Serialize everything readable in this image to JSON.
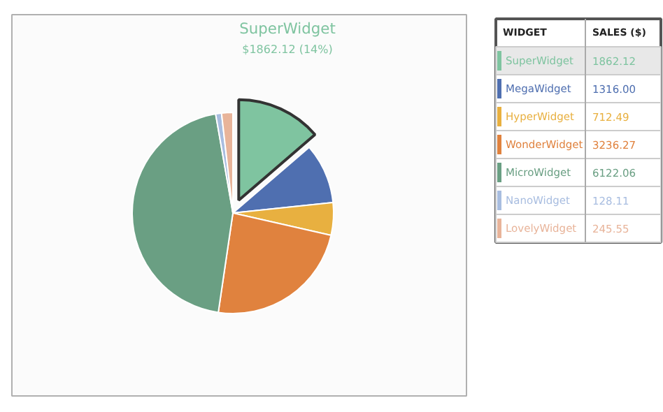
{
  "chart_data": {
    "type": "pie",
    "categories": [
      "SuperWidget",
      "MegaWidget",
      "HyperWidget",
      "WonderWidget",
      "MicroWidget",
      "NanoWidget",
      "LovelyWidget"
    ],
    "values": [
      1862.12,
      1316.0,
      712.49,
      3236.27,
      6122.06,
      128.11,
      245.55
    ],
    "colors": [
      "#7fc4a0",
      "#4f6fb0",
      "#e8b040",
      "#e0823e",
      "#6a9f83",
      "#a8bde0",
      "#e8b49a"
    ],
    "value_labels": [
      "1862.12",
      "1316.00",
      "712.49",
      "3236.27",
      "6122.06",
      "128.11",
      "245.55"
    ],
    "legend": "right",
    "annotations": [
      "WIDGET",
      "SALES ($)",
      "SuperWidget",
      "$1862.12 (14%)"
    ]
  }
}
